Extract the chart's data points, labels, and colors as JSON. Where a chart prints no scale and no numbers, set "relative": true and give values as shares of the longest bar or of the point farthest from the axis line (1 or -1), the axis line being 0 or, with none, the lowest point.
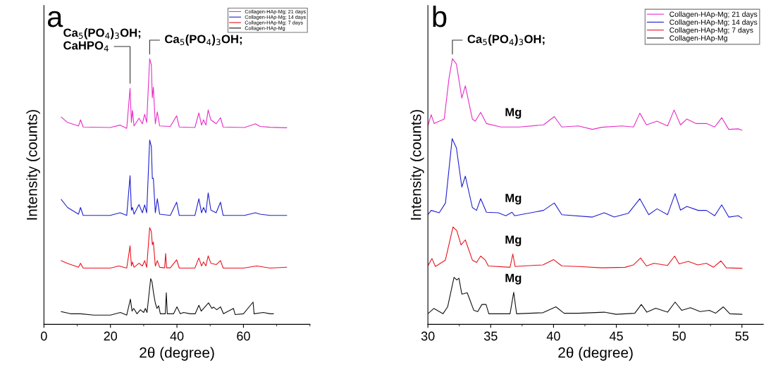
{
  "chart_data": [
    {
      "type": "line",
      "title": "a",
      "xlabel": "2θ (degree)",
      "ylabel": "Intensity (counts)",
      "relative": true,
      "xlim": [
        0,
        80
      ],
      "xticks": [
        0,
        20,
        40,
        60
      ],
      "tick_labels": "x",
      "legend": "top right",
      "annotations": [
        {
          "text": "Ca$_{5}$(PO$_{4}$)$_{3}$OH;",
          "x": 25.9,
          "y": 0.9
        },
        {
          "text": "CaHPO$_{4}$",
          "x": 25.9,
          "y": 0.9
        },
        {
          "text": "Ca$_{5}$(PO$_{4}$)$_{3}$OH;",
          "x": 31.8,
          "y": 1.01
        }
      ],
      "series": [
        {
          "name": "Collagen-HAp-Mg; 21 days",
          "color": "#e62ec8",
          "x": [
            5.2,
            7.1,
            10.4,
            11.0,
            11.8,
            19.9,
            22.9,
            24.9,
            25.9,
            26.3,
            26.6,
            27.1,
            28.6,
            29.6,
            30.3,
            30.9,
            31.8,
            32.3,
            32.6,
            32.9,
            33.5,
            34.1,
            34.8,
            38.0,
            39.9,
            40.7,
            45.4,
            46.6,
            47.4,
            48.0,
            48.7,
            49.4,
            50.2,
            51.8,
            53.1,
            53.9,
            60.3,
            63.6,
            65,
            68,
            73
          ],
          "values": [
            0.78,
            0.76,
            0.747,
            0.77,
            0.743,
            0.741,
            0.75,
            0.738,
            0.889,
            0.76,
            0.806,
            0.747,
            0.776,
            0.755,
            0.791,
            0.76,
            1.0,
            0.977,
            0.853,
            0.893,
            0.755,
            0.8,
            0.747,
            0.745,
            0.785,
            0.743,
            0.741,
            0.796,
            0.75,
            0.77,
            0.75,
            0.807,
            0.77,
            0.755,
            0.778,
            0.743,
            0.741,
            0.755,
            0.745,
            0.742,
            0.74
          ]
        },
        {
          "name": "Collagen-HAp-Mg; 14 days",
          "color": "#1f1fd0",
          "x": [
            5.2,
            7.1,
            10.4,
            11.0,
            11.8,
            19.9,
            22.9,
            24.9,
            25.9,
            26.3,
            26.6,
            27.1,
            28.6,
            29.6,
            30.3,
            30.9,
            31.8,
            32.3,
            32.6,
            32.9,
            33.5,
            34.1,
            34.8,
            38.0,
            39.9,
            40.7,
            45.4,
            46.6,
            47.4,
            48.0,
            48.7,
            49.4,
            50.2,
            51.8,
            53.1,
            53.9,
            60.3,
            63.6,
            65,
            68,
            73
          ],
          "values": [
            0.47,
            0.44,
            0.415,
            0.44,
            0.41,
            0.41,
            0.42,
            0.41,
            0.56,
            0.43,
            0.44,
            0.415,
            0.451,
            0.42,
            0.45,
            0.42,
            0.694,
            0.67,
            0.549,
            0.55,
            0.42,
            0.473,
            0.415,
            0.41,
            0.46,
            0.41,
            0.41,
            0.473,
            0.42,
            0.44,
            0.42,
            0.495,
            0.43,
            0.42,
            0.46,
            0.41,
            0.41,
            0.42,
            0.415,
            0.41,
            0.41
          ]
        },
        {
          "name": "Collagen-HAp-Mg; 7 days",
          "color": "#e8141e",
          "x": [
            5.2,
            7.0,
            10.4,
            11.0,
            11.8,
            20.0,
            22.5,
            24.9,
            25.9,
            26.3,
            26.6,
            27.1,
            28.6,
            29.6,
            30.3,
            30.9,
            31.8,
            32.3,
            32.6,
            32.9,
            33.5,
            34.1,
            34.8,
            36.3,
            36.6,
            36.9,
            38.0,
            39.9,
            40.7,
            45.4,
            46.6,
            47.4,
            48.0,
            48.7,
            49.4,
            50.2,
            51.8,
            53.1,
            53.9,
            60.0,
            64.0,
            68.0,
            73.0
          ],
          "values": [
            0.24,
            0.23,
            0.215,
            0.23,
            0.212,
            0.212,
            0.22,
            0.212,
            0.296,
            0.22,
            0.235,
            0.215,
            0.23,
            0.22,
            0.24,
            0.215,
            0.364,
            0.35,
            0.3,
            0.31,
            0.22,
            0.24,
            0.215,
            0.213,
            0.267,
            0.213,
            0.213,
            0.243,
            0.212,
            0.212,
            0.25,
            0.22,
            0.235,
            0.22,
            0.258,
            0.23,
            0.225,
            0.24,
            0.212,
            0.212,
            0.22,
            0.212,
            0.215
          ]
        },
        {
          "name": "Collagen-HAp-Mg",
          "color": "#111111",
          "x": [
            5.2,
            8,
            11,
            15,
            20,
            23,
            24.9,
            26.0,
            26.5,
            27,
            28,
            29,
            30,
            30.5,
            31,
            32.1,
            32.5,
            33,
            33.5,
            34,
            34.5,
            35,
            36.5,
            36.8,
            37.1,
            39,
            40,
            41,
            42,
            44,
            45.5,
            46.6,
            47.3,
            48,
            49.5,
            50.5,
            51,
            52,
            53.1,
            54,
            57,
            57.5,
            60,
            62.9,
            63.2,
            66,
            68,
            69
          ],
          "values": [
            0.048,
            0.04,
            0.04,
            0.035,
            0.035,
            0.045,
            0.035,
            0.095,
            0.05,
            0.06,
            0.04,
            0.055,
            0.045,
            0.06,
            0.045,
            0.172,
            0.16,
            0.115,
            0.08,
            0.06,
            0.07,
            0.04,
            0.04,
            0.119,
            0.04,
            0.04,
            0.066,
            0.04,
            0.045,
            0.04,
            0.04,
            0.072,
            0.05,
            0.06,
            0.081,
            0.06,
            0.065,
            0.055,
            0.066,
            0.04,
            0.06,
            0.037,
            0.04,
            0.084,
            0.04,
            0.045,
            0.04,
            0.04
          ]
        }
      ]
    },
    {
      "type": "line",
      "title": "b",
      "xlabel": "2θ (degree)",
      "ylabel": "Intensity (counts)",
      "relative": true,
      "xlim": [
        30,
        56.7
      ],
      "xticks": [
        30,
        35,
        40,
        45,
        50,
        55
      ],
      "tick_labels": "x",
      "legend": "top right",
      "annotations": [
        {
          "text": "Ca$_{5}$(PO$_{4}$)$_{3}$OH;",
          "x": 31.95,
          "y": 1.01
        },
        {
          "text": "Mg",
          "x": 36.8,
          "y": 0.745
        },
        {
          "text": "Mg",
          "x": 36.8,
          "y": 0.422
        },
        {
          "text": "Mg",
          "x": 36.8,
          "y": 0.265
        },
        {
          "text": "Mg",
          "x": 36.8,
          "y": 0.121
        }
      ],
      "series": [
        {
          "name": "Collagen-HAp-Mg; 21 days",
          "color": "#e62ec8",
          "x": [
            30.0,
            30.26,
            30.5,
            31.3,
            31.67,
            31.95,
            32.27,
            32.7,
            32.98,
            33.54,
            33.77,
            34.2,
            34.66,
            35.8,
            37.3,
            39.2,
            40.06,
            40.66,
            41.97,
            43.1,
            43.84,
            45.43,
            46.37,
            46.87,
            47.4,
            48.24,
            49.08,
            49.6,
            50.11,
            50.62,
            51.33,
            52.17,
            52.83,
            53.39,
            53.95,
            54.7,
            55.0
          ],
          "values": [
            0.747,
            0.789,
            0.756,
            0.773,
            0.923,
            1.0,
            0.98,
            0.852,
            0.898,
            0.773,
            0.765,
            0.798,
            0.756,
            0.743,
            0.743,
            0.751,
            0.782,
            0.743,
            0.747,
            0.734,
            0.742,
            0.747,
            0.743,
            0.795,
            0.751,
            0.765,
            0.747,
            0.807,
            0.751,
            0.773,
            0.756,
            0.756,
            0.743,
            0.778,
            0.734,
            0.736,
            0.731
          ]
        },
        {
          "name": "Collagen-HAp-Mg; 14 days",
          "color": "#1f1fd0",
          "x": [
            30.0,
            30.26,
            30.9,
            31.4,
            31.93,
            32.27,
            32.7,
            32.98,
            33.54,
            33.87,
            34.2,
            34.66,
            35.6,
            36.2,
            36.7,
            36.9,
            39.2,
            40.06,
            40.66,
            43.1,
            44.04,
            44.83,
            45.95,
            46.87,
            47.58,
            48.24,
            49.08,
            49.68,
            50.11,
            50.62,
            51.52,
            52.17,
            52.83,
            53.39,
            53.95,
            54.7,
            55.0
          ],
          "values": [
            0.413,
            0.429,
            0.42,
            0.457,
            0.699,
            0.664,
            0.517,
            0.558,
            0.44,
            0.429,
            0.473,
            0.422,
            0.42,
            0.409,
            0.422,
            0.409,
            0.429,
            0.457,
            0.413,
            0.404,
            0.42,
            0.404,
            0.418,
            0.473,
            0.413,
            0.435,
            0.413,
            0.492,
            0.43,
            0.444,
            0.429,
            0.429,
            0.409,
            0.45,
            0.404,
            0.409,
            0.4
          ]
        },
        {
          "name": "Collagen-HAp-Mg; 7 days",
          "color": "#e8141e",
          "x": [
            30.0,
            30.32,
            30.6,
            31.39,
            32.0,
            32.3,
            32.64,
            32.98,
            33.54,
            33.87,
            34.2,
            34.57,
            34.81,
            36.54,
            36.76,
            36.94,
            39.16,
            40.0,
            40.66,
            41.97,
            43.84,
            45.7,
            46.37,
            46.93,
            47.4,
            47.99,
            49.08,
            49.64,
            50.0,
            50.73,
            51.48,
            52.17,
            52.73,
            53.33,
            53.76,
            55.0
          ],
          "values": [
            0.22,
            0.248,
            0.218,
            0.242,
            0.367,
            0.353,
            0.299,
            0.318,
            0.242,
            0.233,
            0.257,
            0.242,
            0.22,
            0.215,
            0.265,
            0.218,
            0.224,
            0.244,
            0.22,
            0.218,
            0.213,
            0.215,
            0.224,
            0.25,
            0.22,
            0.23,
            0.222,
            0.257,
            0.228,
            0.237,
            0.224,
            0.23,
            0.215,
            0.239,
            0.213,
            0.211
          ]
        },
        {
          "name": "Collagen-HAp-Mg",
          "color": "#111111",
          "x": [
            30.0,
            30.47,
            31.2,
            31.57,
            32.08,
            32.3,
            32.47,
            32.7,
            33.13,
            33.65,
            33.97,
            34.3,
            34.63,
            34.85,
            36.54,
            36.83,
            37.06,
            39.16,
            40.19,
            40.84,
            41.97,
            44.04,
            44.98,
            46.47,
            46.99,
            47.43,
            48.14,
            49.08,
            49.68,
            50.2,
            50.9,
            51.67,
            52.4,
            52.9,
            53.52,
            54.04,
            55.0
          ],
          "values": [
            0.04,
            0.06,
            0.04,
            0.066,
            0.177,
            0.167,
            0.174,
            0.114,
            0.119,
            0.053,
            0.048,
            0.075,
            0.075,
            0.04,
            0.04,
            0.121,
            0.04,
            0.044,
            0.066,
            0.042,
            0.042,
            0.046,
            0.038,
            0.042,
            0.075,
            0.046,
            0.061,
            0.046,
            0.084,
            0.053,
            0.063,
            0.048,
            0.053,
            0.042,
            0.066,
            0.04,
            0.038
          ]
        }
      ]
    }
  ]
}
